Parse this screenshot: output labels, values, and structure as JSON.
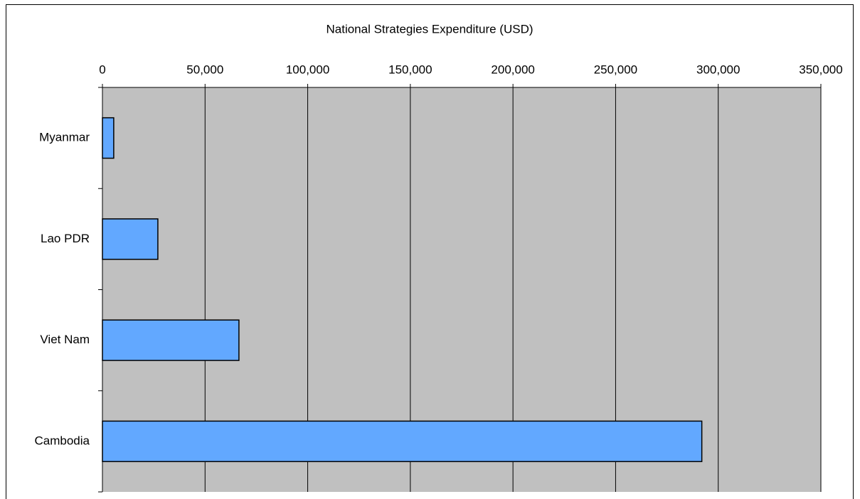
{
  "chart_data": {
    "type": "hbar",
    "title": "National Strategies Expenditure (USD)",
    "categories": [
      "Myanmar",
      "Lao PDR",
      "Viet Nam",
      "Cambodia"
    ],
    "values": [
      5500,
      27000,
      66500,
      292000
    ],
    "color": "#62a8ff",
    "xlim": [
      0,
      350000
    ],
    "xticks": [
      0,
      {
        "value": 50000,
        "label": "50,000"
      },
      {
        "value": 100000,
        "label": "100,000"
      },
      {
        "value": 150000,
        "label": "150,000"
      },
      {
        "value": 200000,
        "label": "200,000"
      },
      {
        "value": 250000,
        "label": "250,000"
      },
      {
        "value": 300000,
        "label": "300,000"
      },
      {
        "value": 350000,
        "label": "350,000"
      }
    ],
    "grid": true
  }
}
